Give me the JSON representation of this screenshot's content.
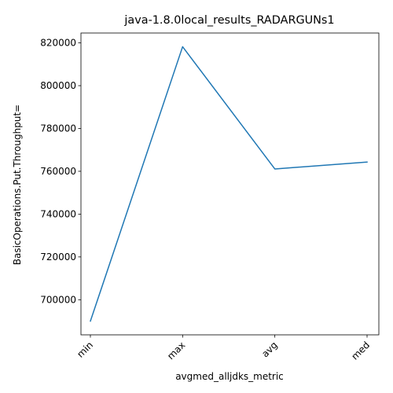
{
  "chart_data": {
    "type": "line",
    "title": "java-1.8.0local_results_RADARGUNs1",
    "xlabel": "avgmed_alljdks_metric",
    "ylabel": "BasicOperations.Put.Throughput=",
    "categories": [
      "min",
      "max",
      "avg",
      "med"
    ],
    "series": [
      {
        "values": [
          690000,
          818200,
          761100,
          764300
        ],
        "color": "#1f77b4"
      }
    ],
    "ylim": [
      683600,
      824600
    ],
    "yticks": [
      700000,
      720000,
      740000,
      760000,
      780000,
      800000,
      820000
    ],
    "ytick_labels": [
      "700000",
      "720000",
      "740000",
      "760000",
      "780000",
      "800000",
      "820000"
    ],
    "xtick_rotation": 45,
    "grid": false,
    "legend": "none"
  }
}
